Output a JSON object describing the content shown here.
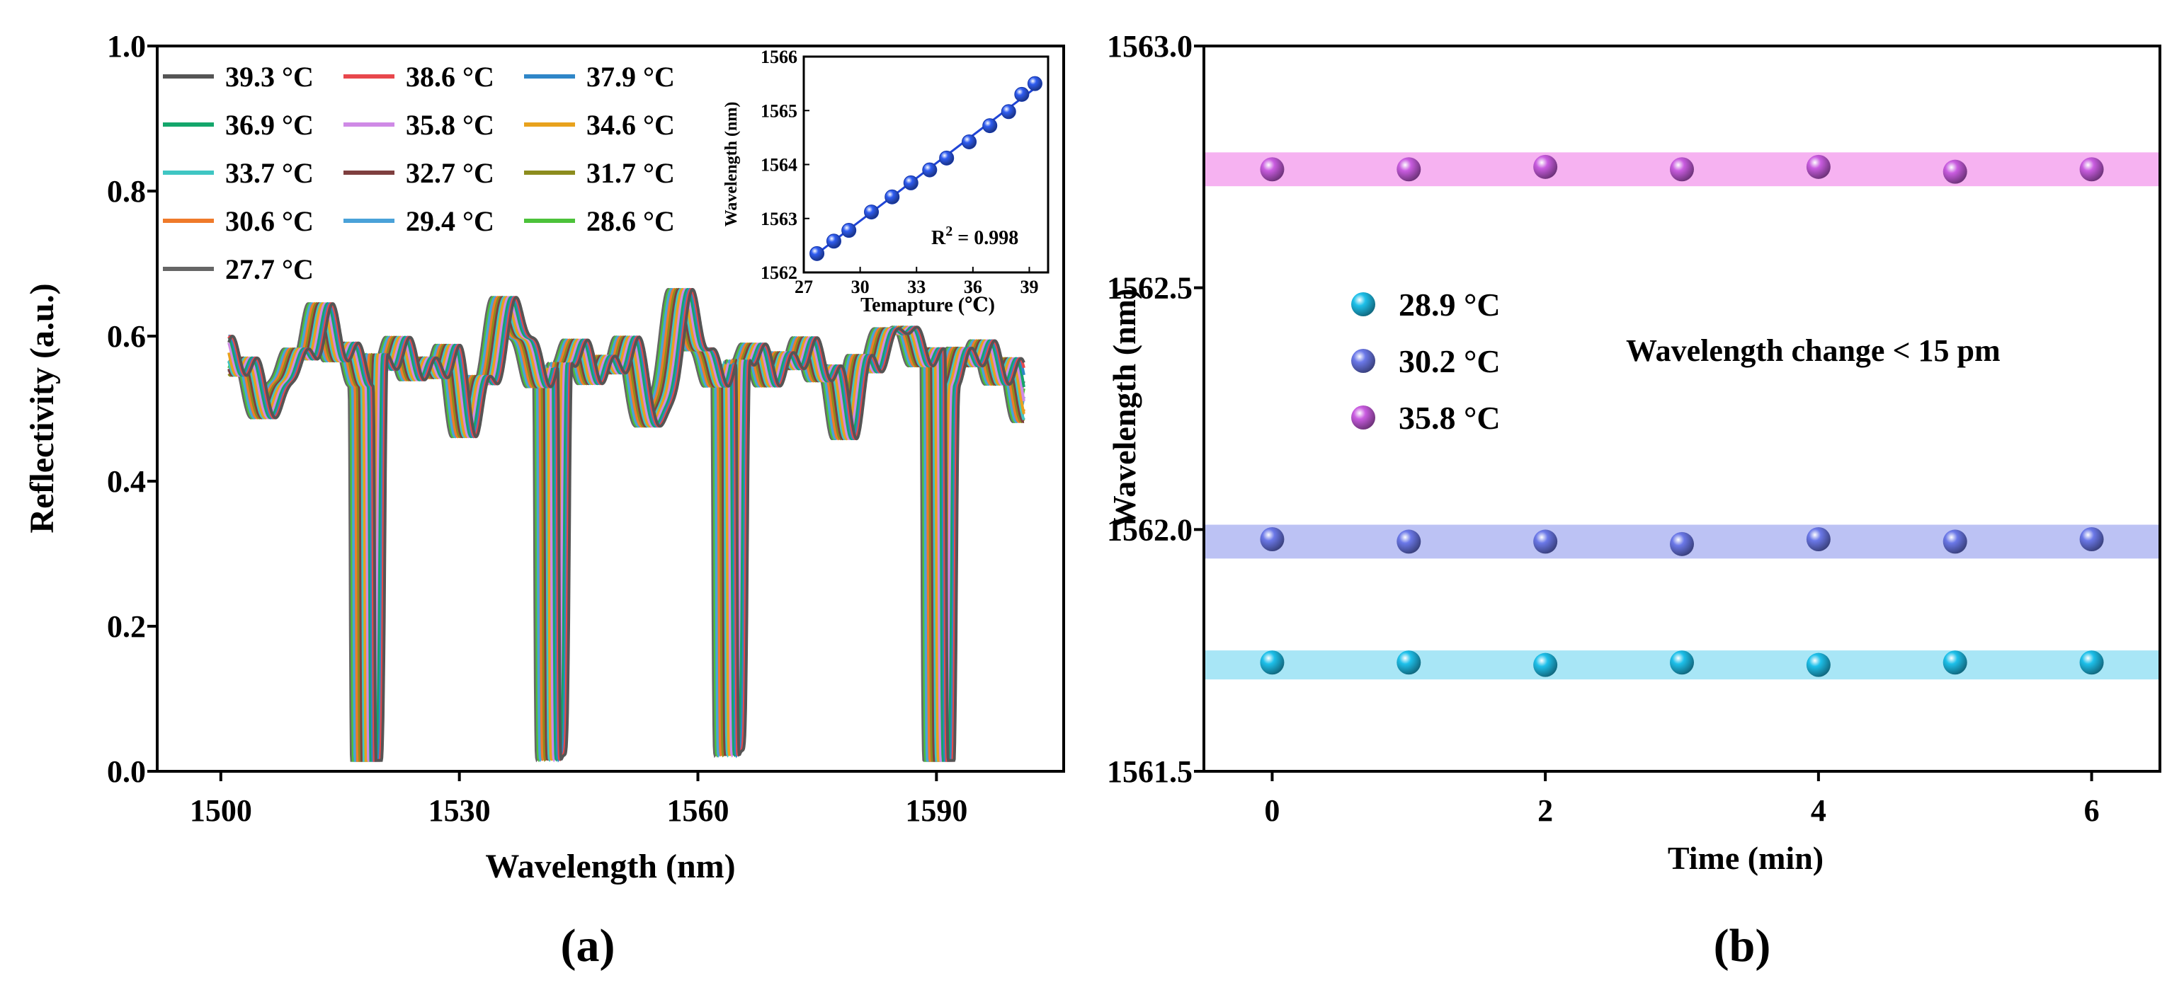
{
  "chart_data": [
    {
      "id": "a",
      "type": "line",
      "panel_label": "(a)",
      "xlabel": "Wavelength (nm)",
      "ylabel": "Reflectivity (a.u.)",
      "xlim": [
        1492,
        1606
      ],
      "ylim": [
        0.0,
        1.0
      ],
      "xticks": [
        1500,
        1530,
        1560,
        1590
      ],
      "yticks": [
        "0.0",
        "0.2",
        "0.4",
        "0.6",
        "0.8",
        "1.0"
      ],
      "wavelength_range": [
        1501,
        1601
      ],
      "dip_centers_at_27_7C": [
        1516.7,
        1539.9,
        1562.3,
        1588.6
      ],
      "dip_min": 0.015,
      "series": [
        {
          "name": "39.3 °C",
          "temp": 39.3,
          "color": "#555555"
        },
        {
          "name": "38.6 °C",
          "temp": 38.6,
          "color": "#e8474c"
        },
        {
          "name": "37.9 °C",
          "temp": 37.9,
          "color": "#2f86c8"
        },
        {
          "name": "36.9 °C",
          "temp": 36.9,
          "color": "#14a66b"
        },
        {
          "name": "35.8 °C",
          "temp": 35.8,
          "color": "#cf8ae6"
        },
        {
          "name": "34.6 °C",
          "temp": 34.6,
          "color": "#e8a21d"
        },
        {
          "name": "33.7 °C",
          "temp": 33.7,
          "color": "#3fc6c3"
        },
        {
          "name": "32.7 °C",
          "temp": 32.7,
          "color": "#7f3f3f"
        },
        {
          "name": "31.7 °C",
          "temp": 31.7,
          "color": "#8c8c1e"
        },
        {
          "name": "30.6 °C",
          "temp": 30.6,
          "color": "#ef7a2a"
        },
        {
          "name": "29.4 °C",
          "temp": 29.4,
          "color": "#4aa2d9"
        },
        {
          "name": "28.6 °C",
          "temp": 28.6,
          "color": "#4cc23a"
        },
        {
          "name": "27.7 °C",
          "temp": 27.7,
          "color": "#666666"
        }
      ],
      "inset": {
        "type": "scatter",
        "xlabel": "Temapture (℃)",
        "ylabel": "Wavelength (nm)",
        "xlim": [
          27,
          40
        ],
        "ylim": [
          1562,
          1566
        ],
        "xticks": [
          27,
          30,
          33,
          36,
          39
        ],
        "yticks": [
          1562,
          1563,
          1564,
          1565,
          1566
        ],
        "annotation_base": "R",
        "annotation_sup": "2",
        "annotation_rest": " = 0.998",
        "fit": {
          "slope": 0.2645,
          "intercept": 1555.02
        },
        "points": [
          {
            "x": 27.7,
            "y": 1562.35
          },
          {
            "x": 28.6,
            "y": 1562.58
          },
          {
            "x": 29.4,
            "y": 1562.78
          },
          {
            "x": 30.6,
            "y": 1563.12
          },
          {
            "x": 31.7,
            "y": 1563.4
          },
          {
            "x": 32.7,
            "y": 1563.66
          },
          {
            "x": 33.7,
            "y": 1563.9
          },
          {
            "x": 34.6,
            "y": 1564.12
          },
          {
            "x": 35.8,
            "y": 1564.42
          },
          {
            "x": 36.9,
            "y": 1564.72
          },
          {
            "x": 37.9,
            "y": 1564.98
          },
          {
            "x": 38.6,
            "y": 1565.3
          },
          {
            "x": 39.3,
            "y": 1565.5
          }
        ]
      }
    },
    {
      "id": "b",
      "type": "scatter",
      "panel_label": "(b)",
      "xlabel": "Time (min)",
      "ylabel": "Wavelength (nm)",
      "xlim": [
        -0.5,
        6.5
      ],
      "ylim": [
        1561.5,
        1563.0
      ],
      "xticks": [
        0,
        2,
        4,
        6
      ],
      "yticks": [
        "1561.5",
        "1562.0",
        "1562.5",
        "1563.0"
      ],
      "annotation": "Wavelength change < 15 pm",
      "x": [
        0,
        1,
        2,
        3,
        4,
        5,
        6
      ],
      "series": [
        {
          "name": "28.9 °C",
          "color": "#1ec0ea",
          "band_color": "#9fe3f5",
          "band": [
            1561.69,
            1561.75
          ],
          "values": [
            1561.725,
            1561.725,
            1561.72,
            1561.725,
            1561.72,
            1561.725,
            1561.725
          ]
        },
        {
          "name": "30.2 °C",
          "color": "#6b78e8",
          "band_color": "#b5bbf3",
          "band": [
            1561.94,
            1562.01
          ],
          "values": [
            1561.98,
            1561.975,
            1561.975,
            1561.97,
            1561.98,
            1561.975,
            1561.98
          ]
        },
        {
          "name": "35.8 °C",
          "color": "#c95ce0",
          "band_color": "#f5aaf0",
          "band": [
            1562.71,
            1562.78
          ],
          "values": [
            1562.745,
            1562.745,
            1562.75,
            1562.745,
            1562.75,
            1562.74,
            1562.745
          ]
        }
      ]
    }
  ]
}
